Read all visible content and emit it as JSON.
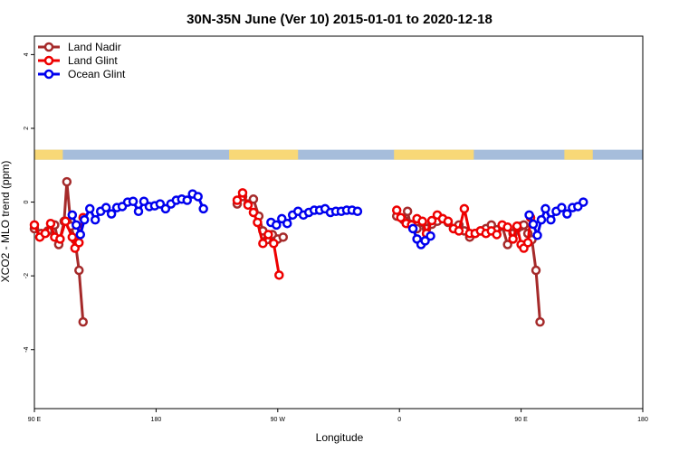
{
  "chart_data": {
    "type": "line",
    "title": "30N-35N June (Ver 10)   2015-01-01 to 2020-12-18",
    "xlabel": "Longitude",
    "ylabel": "XCO2 - MLO trend (ppm)",
    "xlim": [
      90,
      450
    ],
    "ylim": [
      -5.6,
      4.5
    ],
    "x_tick_values": [
      90,
      180,
      270,
      360,
      450
    ],
    "x_tick_labels": [
      "90 E",
      "180",
      "90 W",
      "0",
      "90 E",
      "180"
    ],
    "x_ticks_all": [
      90,
      180,
      270,
      360,
      450,
      540
    ],
    "xlim_full": [
      90,
      540
    ],
    "y_ticks": [
      -4,
      -2,
      0,
      2,
      4
    ],
    "y_tick_labels": [
      "-4",
      "-2",
      "0",
      "2",
      "4"
    ],
    "legend": {
      "placement": "top-left",
      "entries": [
        {
          "name": "Land Nadir",
          "color": "#a52a2a"
        },
        {
          "name": "Land Glint",
          "color": "#ee0000"
        },
        {
          "name": "Ocean Glint",
          "color": "#0000ee"
        }
      ]
    },
    "land_mask_band": {
      "ymin": 1.15,
      "ymax": 1.42,
      "land_color": "#f8d877",
      "ocean_color": "#a6bddb",
      "land_lon_ranges": [
        [
          90,
          111
        ],
        [
          234,
          285
        ],
        [
          356,
          415
        ],
        [
          482,
          503
        ]
      ]
    },
    "series": [
      {
        "name": "Land Nadir",
        "color": "#a52a2a",
        "segments": [
          [
            [
              90,
              -0.72
            ],
            [
              95,
              -0.85
            ],
            [
              100,
              -0.78
            ],
            [
              105,
              -0.62
            ],
            [
              108,
              -1.15
            ],
            [
              112,
              -0.52
            ],
            [
              114,
              0.55
            ],
            [
              117,
              -0.65
            ],
            [
              120,
              -1.02
            ],
            [
              123,
              -1.85
            ],
            [
              126,
              -3.25
            ]
          ],
          [
            [
              240,
              -0.05
            ],
            [
              244,
              0.15
            ],
            [
              248,
              -0.05
            ],
            [
              252,
              0.08
            ],
            [
              256,
              -0.38
            ],
            [
              259,
              -0.78
            ],
            [
              262,
              -1.02
            ],
            [
              266,
              -0.88
            ],
            [
              270,
              -1.0
            ],
            [
              274,
              -0.95
            ]
          ],
          [
            [
              358,
              -0.38
            ],
            [
              363,
              -0.48
            ],
            [
              366,
              -0.25
            ],
            [
              368,
              -0.6
            ],
            [
              373,
              -0.72
            ],
            [
              377,
              -0.55
            ],
            [
              380,
              -0.72
            ],
            [
              384,
              -0.6
            ],
            [
              388,
              -0.52
            ],
            [
              392,
              -0.45
            ],
            [
              396,
              -0.55
            ],
            [
              400,
              -0.72
            ],
            [
              404,
              -0.62
            ],
            [
              408,
              -0.78
            ],
            [
              412,
              -0.95
            ],
            [
              416,
              -0.85
            ],
            [
              420,
              -0.78
            ],
            [
              424,
              -0.72
            ],
            [
              428,
              -0.62
            ],
            [
              432,
              -0.75
            ],
            [
              436,
              -0.65
            ],
            [
              440,
              -1.15
            ],
            [
              444,
              -0.85
            ],
            [
              447,
              -0.72
            ],
            [
              450,
              -0.65
            ],
            [
              452,
              -0.62
            ],
            [
              455,
              -0.85
            ],
            [
              458,
              -1.02
            ],
            [
              461,
              -1.85
            ],
            [
              464,
              -3.25
            ]
          ]
        ]
      },
      {
        "name": "Land Glint",
        "color": "#ee0000",
        "segments": [
          [
            [
              90,
              -0.62
            ],
            [
              94,
              -0.95
            ],
            [
              98,
              -0.85
            ],
            [
              102,
              -0.58
            ],
            [
              105,
              -0.95
            ],
            [
              109,
              -1.0
            ],
            [
              113,
              -0.52
            ],
            [
              118,
              -0.95
            ],
            [
              120,
              -1.25
            ],
            [
              123,
              -1.1
            ],
            [
              126,
              -0.42
            ]
          ],
          [
            [
              240,
              0.05
            ],
            [
              244,
              0.25
            ],
            [
              248,
              -0.08
            ],
            [
              252,
              -0.28
            ],
            [
              255,
              -0.55
            ],
            [
              259,
              -1.12
            ],
            [
              263,
              -0.88
            ],
            [
              267,
              -1.12
            ],
            [
              271,
              -1.98
            ]
          ],
          [
            [
              358,
              -0.22
            ],
            [
              361,
              -0.42
            ],
            [
              365,
              -0.58
            ],
            [
              369,
              -0.62
            ],
            [
              373,
              -0.45
            ],
            [
              377,
              -0.52
            ],
            [
              380,
              -0.85
            ],
            [
              384,
              -0.5
            ],
            [
              388,
              -0.35
            ],
            [
              392,
              -0.45
            ],
            [
              396,
              -0.52
            ],
            [
              400,
              -0.72
            ],
            [
              404,
              -0.78
            ],
            [
              408,
              -0.18
            ],
            [
              412,
              -0.85
            ],
            [
              416,
              -0.85
            ],
            [
              420,
              -0.78
            ],
            [
              424,
              -0.85
            ],
            [
              428,
              -0.78
            ],
            [
              432,
              -0.88
            ],
            [
              436,
              -0.62
            ],
            [
              440,
              -0.68
            ],
            [
              444,
              -1.0
            ],
            [
              447,
              -0.65
            ],
            [
              450,
              -1.15
            ],
            [
              452,
              -1.25
            ],
            [
              455,
              -1.1
            ],
            [
              457,
              -0.42
            ]
          ]
        ]
      },
      {
        "name": "Ocean Glint",
        "color": "#0000ee",
        "segments": [
          [
            [
              118,
              -0.35
            ],
            [
              121,
              -0.62
            ],
            [
              124,
              -0.88
            ],
            [
              127,
              -0.48
            ],
            [
              131,
              -0.18
            ],
            [
              135,
              -0.48
            ],
            [
              139,
              -0.25
            ],
            [
              143,
              -0.15
            ],
            [
              147,
              -0.32
            ],
            [
              151,
              -0.15
            ],
            [
              155,
              -0.12
            ],
            [
              159,
              0.0
            ],
            [
              163,
              0.02
            ],
            [
              167,
              -0.25
            ],
            [
              171,
              0.02
            ],
            [
              175,
              -0.12
            ],
            [
              179,
              -0.1
            ],
            [
              183,
              -0.05
            ],
            [
              187,
              -0.18
            ],
            [
              191,
              -0.05
            ],
            [
              195,
              0.05
            ],
            [
              199,
              0.08
            ],
            [
              203,
              0.05
            ],
            [
              207,
              0.22
            ],
            [
              211,
              0.15
            ],
            [
              215,
              -0.18
            ]
          ],
          [
            [
              265,
              -0.55
            ],
            [
              269,
              -0.62
            ],
            [
              273,
              -0.45
            ],
            [
              277,
              -0.58
            ],
            [
              281,
              -0.35
            ],
            [
              285,
              -0.25
            ],
            [
              289,
              -0.35
            ],
            [
              293,
              -0.28
            ],
            [
              297,
              -0.22
            ],
            [
              301,
              -0.22
            ],
            [
              305,
              -0.18
            ],
            [
              309,
              -0.28
            ],
            [
              313,
              -0.25
            ],
            [
              317,
              -0.25
            ],
            [
              321,
              -0.22
            ],
            [
              325,
              -0.22
            ],
            [
              329,
              -0.25
            ]
          ],
          [
            [
              370,
              -0.72
            ],
            [
              373,
              -1.0
            ],
            [
              376,
              -1.15
            ],
            [
              379,
              -1.05
            ],
            [
              383,
              -0.92
            ]
          ],
          [
            [
              456,
              -0.35
            ],
            [
              459,
              -0.6
            ],
            [
              462,
              -0.9
            ],
            [
              465,
              -0.48
            ],
            [
              468,
              -0.18
            ],
            [
              472,
              -0.48
            ],
            [
              476,
              -0.25
            ],
            [
              480,
              -0.15
            ],
            [
              484,
              -0.32
            ],
            [
              488,
              -0.15
            ],
            [
              492,
              -0.12
            ],
            [
              496,
              0.0
            ]
          ]
        ]
      }
    ]
  }
}
